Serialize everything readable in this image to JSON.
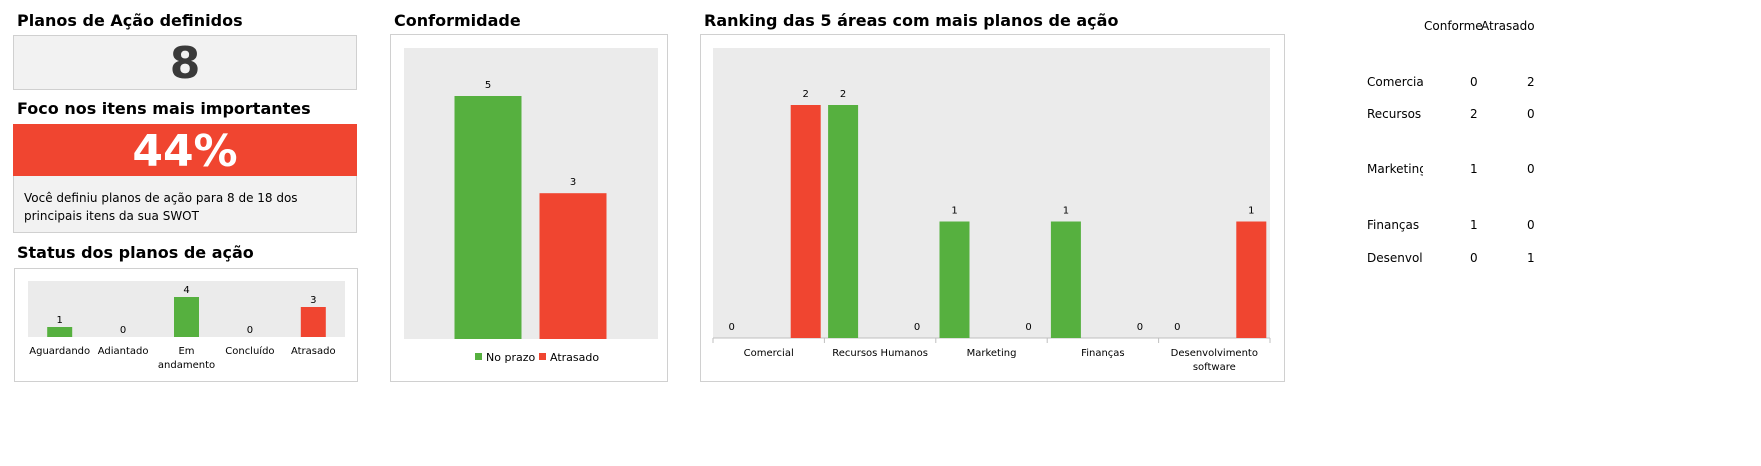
{
  "colors": {
    "green": "#56b03f",
    "red": "#f04530",
    "plot_bg": "#ebebeb",
    "panel_bg": "#f2f2f2"
  },
  "planos": {
    "title": "Planos de Ação definidos",
    "value": "8"
  },
  "foco": {
    "title": "Foco nos itens mais importantes",
    "percent": "44%",
    "description": "Você definiu planos de ação para 8 de 18 dos principais itens da sua SWOT"
  },
  "status": {
    "title": "Status dos planos de ação"
  },
  "conformidade": {
    "title": "Conformidade"
  },
  "ranking": {
    "title": "Ranking das 5 áreas com mais planos de ação"
  },
  "table": {
    "headers": [
      "Conforme",
      "Atrasado"
    ],
    "rows": [
      {
        "label": "Comercial",
        "conforme": "0",
        "atrasado": "2"
      },
      {
        "label": "Recursos Humanos",
        "conforme": "2",
        "atrasado": "0"
      },
      {
        "label": "Marketing",
        "conforme": "1",
        "atrasado": "0"
      },
      {
        "label": "Finanças",
        "conforme": "1",
        "atrasado": "0"
      },
      {
        "label": "Desenvolvimento software",
        "conforme": "0",
        "atrasado": "1"
      }
    ]
  },
  "chart_data": [
    {
      "id": "status",
      "type": "bar",
      "title": "Status dos planos de ação",
      "categories": [
        "Aguardando",
        "Adiantado",
        "Em andamento",
        "Concluído",
        "Atrasado"
      ],
      "values": [
        1,
        0,
        4,
        0,
        3
      ],
      "bar_colors": [
        "green",
        "green",
        "green",
        "green",
        "red"
      ],
      "ylim": [
        0,
        4
      ],
      "grid": false
    },
    {
      "id": "conformidade",
      "type": "bar",
      "title": "Conformidade",
      "categories": [
        "No prazo",
        "Atrasado"
      ],
      "values": [
        5,
        3
      ],
      "bar_colors": [
        "green",
        "red"
      ],
      "legend": [
        "No prazo",
        "Atrasado"
      ],
      "legend_position": "bottom",
      "ylim": [
        0,
        5
      ],
      "grid": false
    },
    {
      "id": "ranking",
      "type": "bar",
      "title": "Ranking das 5 áreas com mais planos de ação",
      "categories": [
        "Comercial",
        "Recursos Humanos",
        "Marketing",
        "Finanças",
        "Desenvolvimento software"
      ],
      "series": [
        {
          "values": [
            0,
            2,
            1,
            1,
            0
          ],
          "color": "green"
        },
        {
          "values": [
            2,
            0,
            0,
            0,
            1
          ],
          "color": "red"
        }
      ],
      "ylim": [
        0,
        2
      ],
      "grid": false
    }
  ]
}
